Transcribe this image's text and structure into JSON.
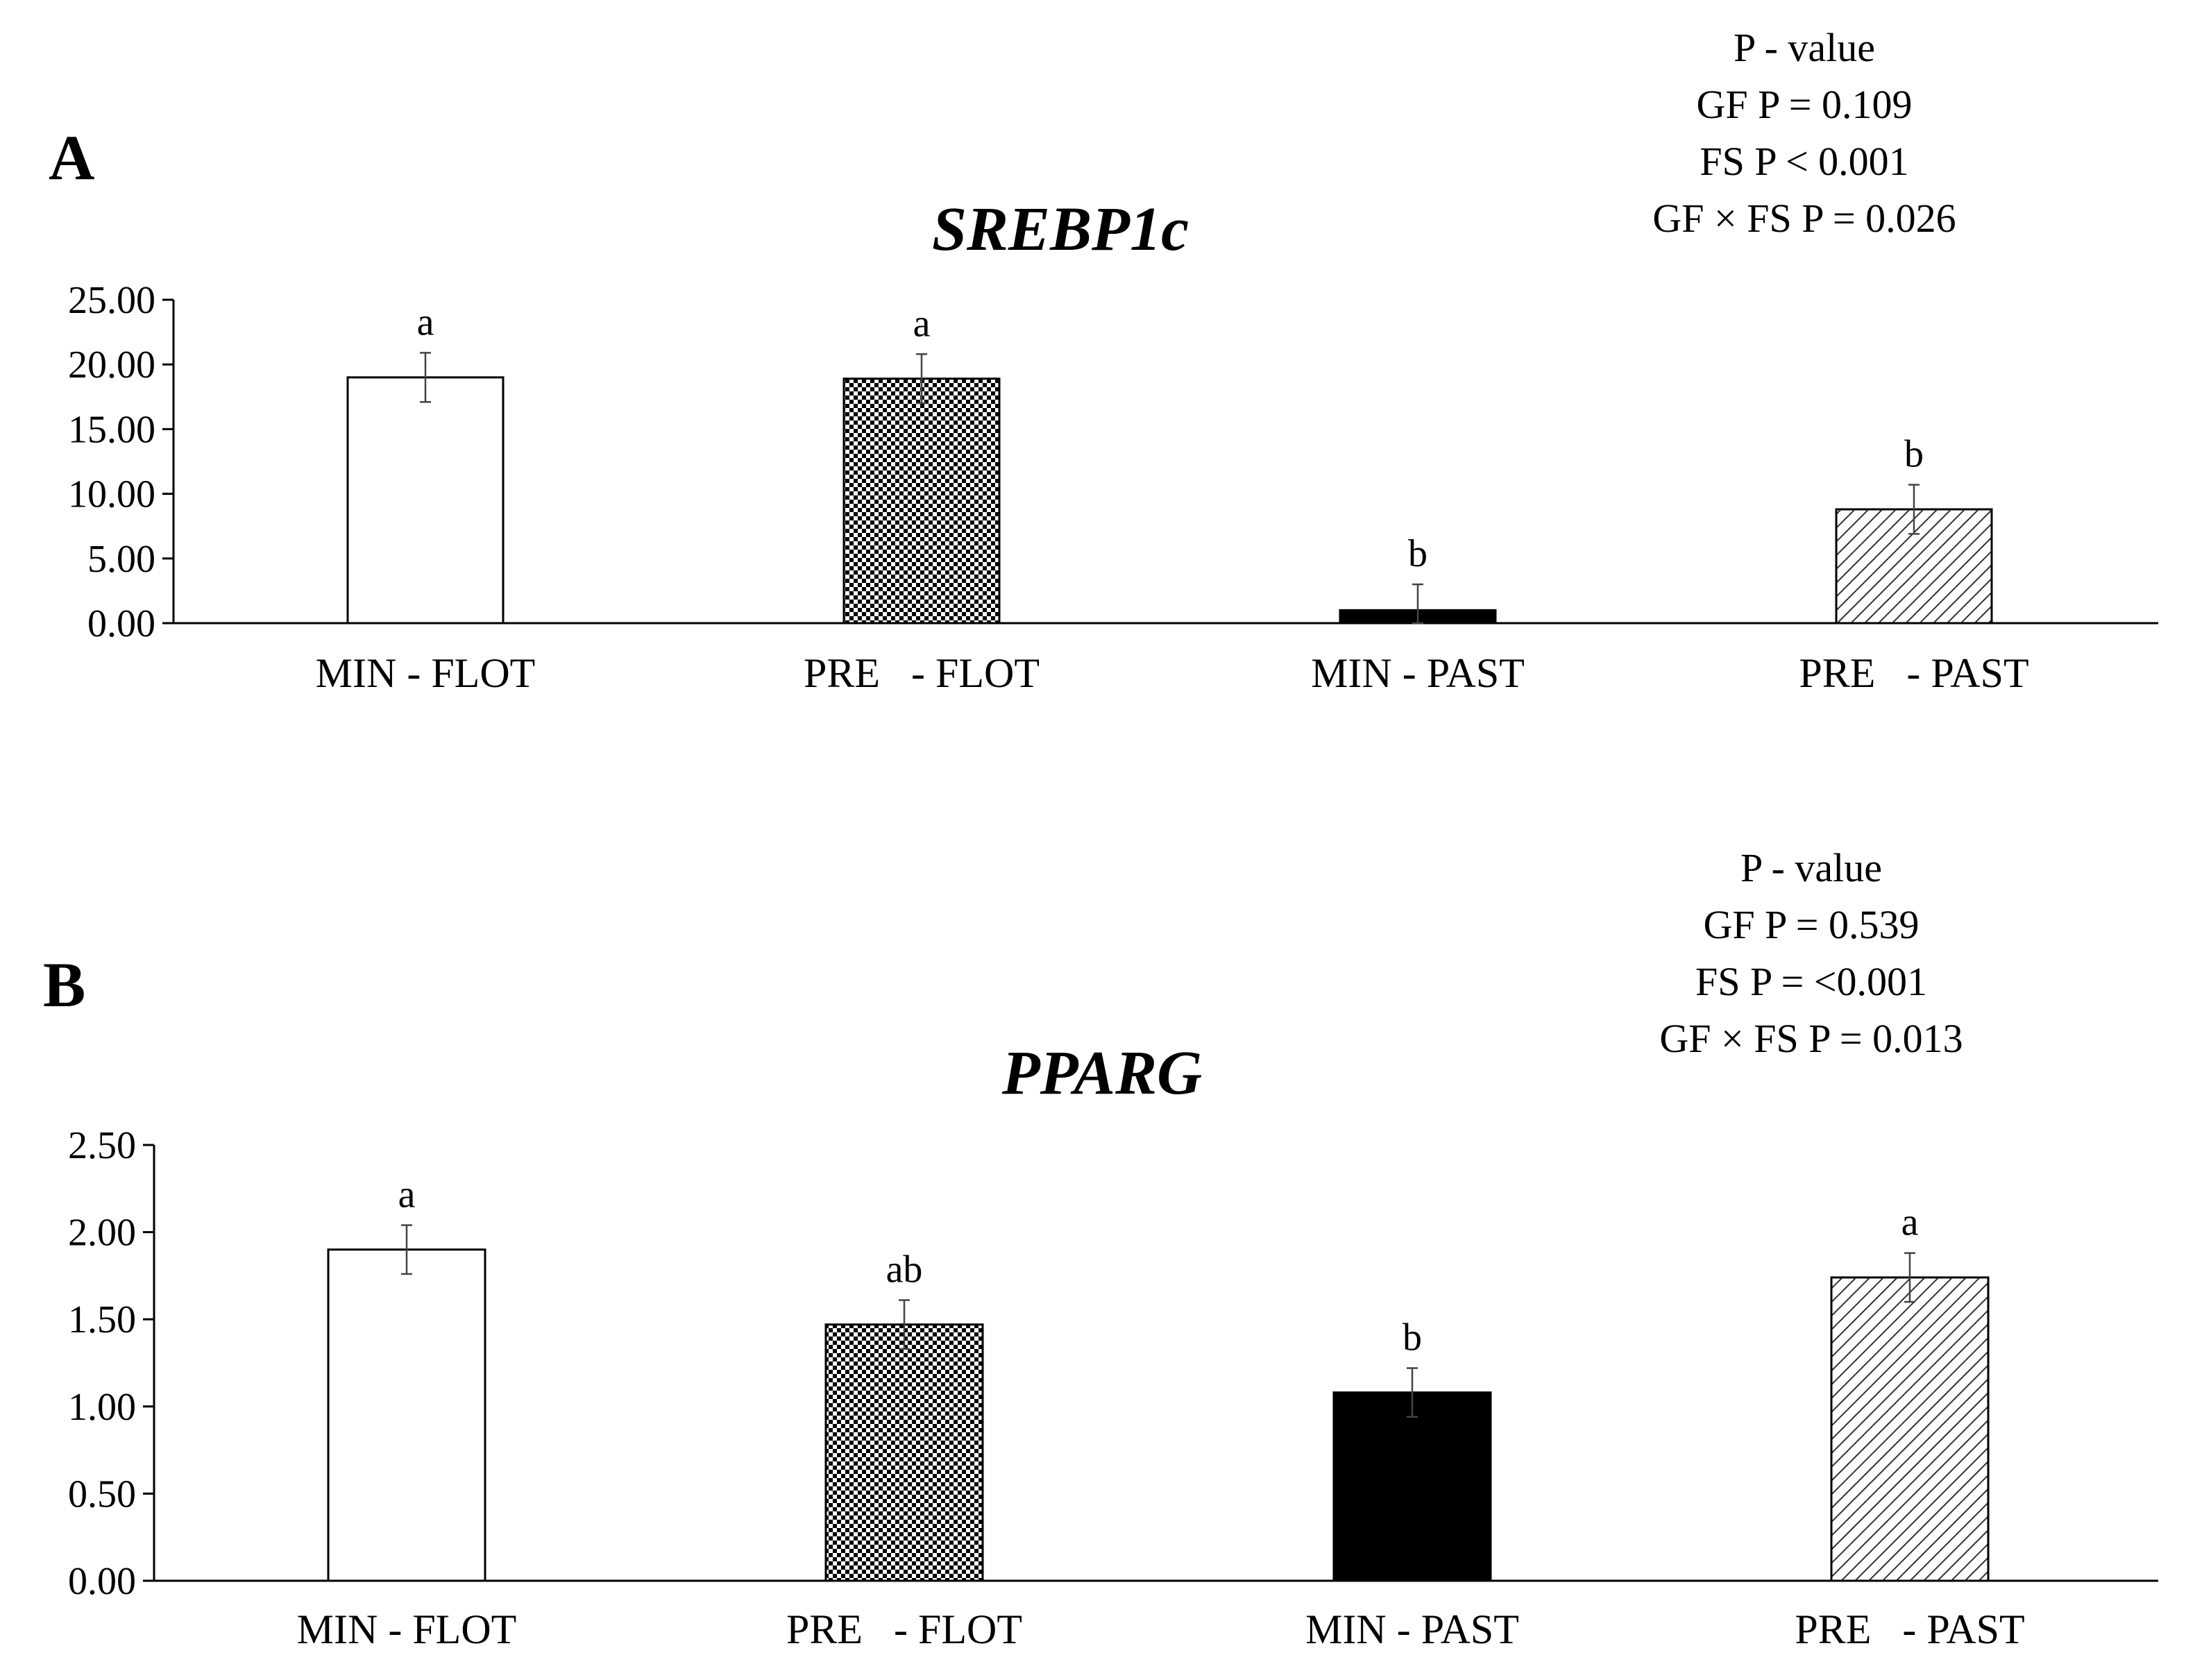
{
  "colors": {
    "axis": "#000000",
    "bar_outline": "#000000",
    "errorbar": "#444444",
    "background": "#ffffff"
  },
  "chart_data": [
    {
      "panel": "A",
      "type": "bar",
      "title": "SREBP1c",
      "categories": [
        "MIN - FLOT",
        "PRE   - FLOT",
        "MIN - PAST",
        "PRE   - PAST"
      ],
      "values": [
        19.0,
        18.9,
        1.0,
        8.8
      ],
      "errors": [
        1.9,
        1.9,
        2.0,
        1.9
      ],
      "significance": [
        "a",
        "a",
        "b",
        "b"
      ],
      "bar_patterns": [
        "white",
        "checker",
        "black",
        "diagonal"
      ],
      "ylim": [
        0,
        25
      ],
      "yticks": [
        0,
        5,
        10,
        15,
        20,
        25
      ],
      "ytick_labels": [
        "0.00",
        "5.00",
        "10.00",
        "15.00",
        "20.00",
        "25.00"
      ],
      "xlabel": "",
      "ylabel": "",
      "pvalue_lines": [
        "P - value",
        "GF P = 0.109",
        "FS P < 0.001",
        "GF × FS P = 0.026"
      ]
    },
    {
      "panel": "B",
      "type": "bar",
      "title": "PPARG",
      "categories": [
        "MIN - FLOT",
        "PRE   - FLOT",
        "MIN - PAST",
        "PRE   - PAST"
      ],
      "values": [
        1.9,
        1.47,
        1.08,
        1.74
      ],
      "errors": [
        0.14,
        0.14,
        0.14,
        0.14
      ],
      "significance": [
        "a",
        "ab",
        "b",
        "a"
      ],
      "bar_patterns": [
        "white",
        "checker",
        "black",
        "diagonal"
      ],
      "ylim": [
        0,
        2.5
      ],
      "yticks": [
        0,
        0.5,
        1.0,
        1.5,
        2.0,
        2.5
      ],
      "ytick_labels": [
        "0.00",
        "0.50",
        "1.00",
        "1.50",
        "2.00",
        "2.50"
      ],
      "xlabel": "",
      "ylabel": "",
      "pvalue_lines": [
        "P - value",
        "GF P = 0.539",
        "FS P = <0.001",
        "GF × FS P = 0.013"
      ]
    }
  ]
}
